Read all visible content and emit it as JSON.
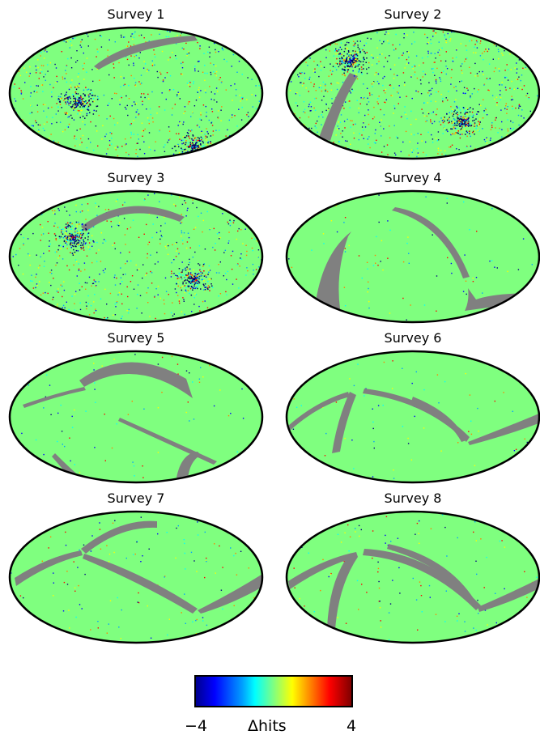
{
  "panels": [
    {
      "title": "Survey 1"
    },
    {
      "title": "Survey 2"
    },
    {
      "title": "Survey 3"
    },
    {
      "title": "Survey 4"
    },
    {
      "title": "Survey 5"
    },
    {
      "title": "Survey 6"
    },
    {
      "title": "Survey 7"
    },
    {
      "title": "Survey 8"
    }
  ],
  "colorbar": {
    "min_label": "−4",
    "max_label": "4",
    "label": "Δhits",
    "min": -4,
    "max": 4,
    "colormap": "jet"
  },
  "colors": {
    "background_field": "#7fff7f",
    "masked_region": "#808080",
    "outline": "#000000"
  }
}
